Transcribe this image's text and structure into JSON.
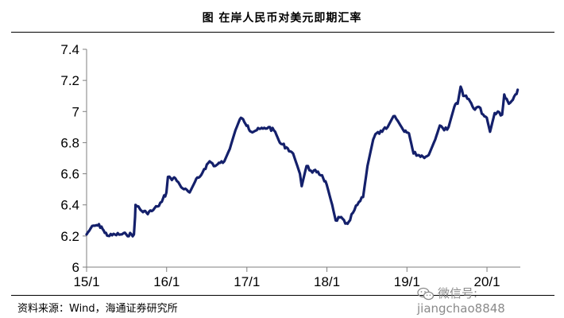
{
  "header": {
    "title": "图  在岸人民币对美元即期汇率"
  },
  "footer": {
    "source": "资料来源：Wind，海通证券研究所"
  },
  "watermark": {
    "text": "微信号: jiangchao8848"
  },
  "colors": {
    "series": "#14206b",
    "axis": "#7f7f7f",
    "text": "#000000"
  },
  "chart_data": {
    "type": "line",
    "title": "图  在岸人民币对美元即期汇率",
    "xlabel": "",
    "ylabel": "",
    "xlim": [
      "2015-01-01",
      "2020-06-01"
    ],
    "ylim": [
      6.0,
      7.4
    ],
    "yticks": [
      6,
      6.2,
      6.4,
      6.6,
      6.8,
      7,
      7.2,
      7.4
    ],
    "ytick_labels": [
      "6",
      "6.2",
      "6.4",
      "6.6",
      "6.8",
      "7",
      "7.2",
      "7.4"
    ],
    "xticks": [
      "2015-01-01",
      "2016-01-01",
      "2017-01-01",
      "2018-01-01",
      "2019-01-01",
      "2020-01-01"
    ],
    "xtick_labels": [
      "15/1",
      "16/1",
      "17/1",
      "18/1",
      "19/1",
      "20/1"
    ],
    "grid": false,
    "legend": "none",
    "series": [
      {
        "x": [
          "2015-01-01",
          "2015-01-20",
          "2015-02-15",
          "2015-03-10",
          "2015-03-25",
          "2015-04-15",
          "2015-05-10",
          "2015-06-05",
          "2015-07-01",
          "2015-08-05",
          "2015-08-10",
          "2015-08-12",
          "2015-08-20",
          "2015-09-10",
          "2015-10-01",
          "2015-10-25",
          "2015-11-20",
          "2015-12-10",
          "2015-12-31",
          "2016-01-07",
          "2016-01-20",
          "2016-02-10",
          "2016-03-01",
          "2016-03-20",
          "2016-04-15",
          "2016-05-10",
          "2016-05-31",
          "2016-06-20",
          "2016-07-15",
          "2016-08-10",
          "2016-09-01",
          "2016-09-20",
          "2016-10-15",
          "2016-11-10",
          "2016-11-30",
          "2016-12-15",
          "2017-01-05",
          "2017-01-20",
          "2017-02-15",
          "2017-03-15",
          "2017-04-10",
          "2017-05-10",
          "2017-05-31",
          "2017-06-30",
          "2017-07-31",
          "2017-08-31",
          "2017-09-08",
          "2017-09-30",
          "2017-10-20",
          "2017-11-15",
          "2017-12-10",
          "2017-12-31",
          "2018-01-25",
          "2018-02-10",
          "2018-03-01",
          "2018-03-26",
          "2018-04-10",
          "2018-04-30",
          "2018-05-20",
          "2018-06-15",
          "2018-07-05",
          "2018-07-31",
          "2018-08-15",
          "2018-09-10",
          "2018-10-05",
          "2018-10-31",
          "2018-11-20",
          "2018-12-20",
          "2019-01-10",
          "2019-01-31",
          "2019-02-20",
          "2019-03-15",
          "2019-04-10",
          "2019-05-10",
          "2019-05-31",
          "2019-06-20",
          "2019-07-10",
          "2019-08-05",
          "2019-08-20",
          "2019-09-03",
          "2019-09-15",
          "2019-10-10",
          "2019-11-01",
          "2019-11-25",
          "2019-12-15",
          "2019-12-31",
          "2020-01-15",
          "2020-02-05",
          "2020-02-20",
          "2020-03-10",
          "2020-03-20",
          "2020-04-10",
          "2020-05-10",
          "2020-05-20"
        ],
        "values": [
          6.21,
          6.25,
          6.27,
          6.26,
          6.22,
          6.2,
          6.21,
          6.21,
          6.21,
          6.21,
          6.32,
          6.4,
          6.39,
          6.36,
          6.35,
          6.36,
          6.39,
          6.42,
          6.48,
          6.58,
          6.57,
          6.57,
          6.53,
          6.5,
          6.48,
          6.55,
          6.58,
          6.63,
          6.68,
          6.65,
          6.67,
          6.68,
          6.76,
          6.88,
          6.95,
          6.95,
          6.91,
          6.87,
          6.88,
          6.89,
          6.9,
          6.87,
          6.8,
          6.77,
          6.73,
          6.6,
          6.52,
          6.65,
          6.62,
          6.61,
          6.59,
          6.53,
          6.4,
          6.3,
          6.32,
          6.28,
          6.29,
          6.35,
          6.4,
          6.45,
          6.65,
          6.82,
          6.86,
          6.87,
          6.9,
          6.97,
          6.94,
          6.87,
          6.86,
          6.73,
          6.72,
          6.71,
          6.72,
          6.82,
          6.91,
          6.88,
          6.9,
          7.03,
          7.05,
          7.16,
          7.1,
          7.08,
          7.02,
          7.03,
          6.98,
          6.96,
          6.87,
          6.99,
          7.0,
          6.98,
          7.11,
          7.05,
          7.11,
          7.14
        ]
      }
    ]
  }
}
